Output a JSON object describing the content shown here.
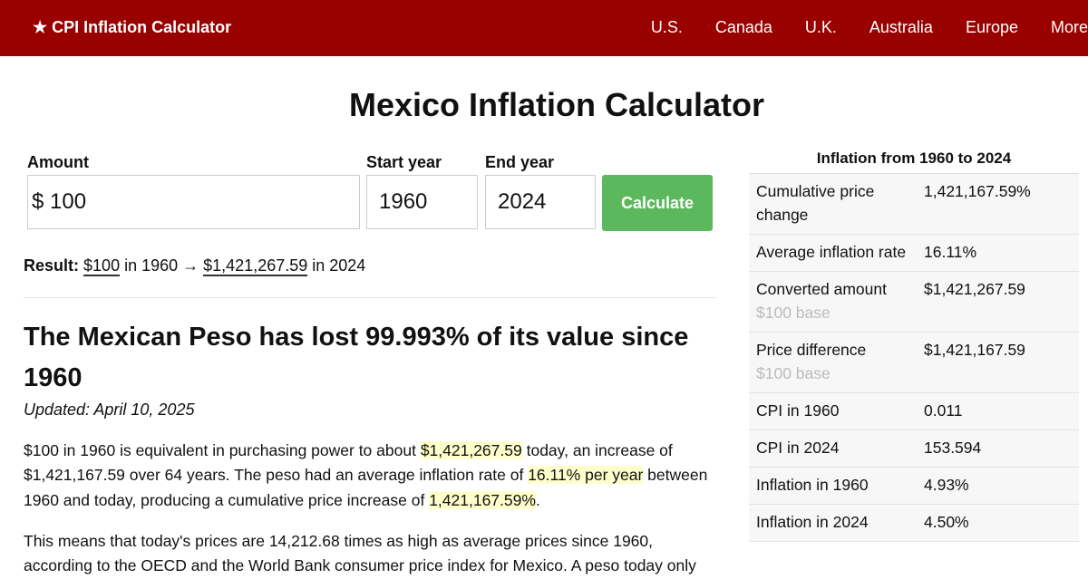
{
  "nav": {
    "brand": "★ CPI Inflation Calculator",
    "links": [
      "U.S.",
      "Canada",
      "U.K.",
      "Australia",
      "Europe",
      "More"
    ]
  },
  "title": "Mexico Inflation Calculator",
  "form": {
    "amount_label": "Amount",
    "currency": "$",
    "amount": "100",
    "start_label": "Start year",
    "start": "1960",
    "end_label": "End year",
    "end": "2024",
    "button": "Calculate"
  },
  "result": {
    "label": "Result:",
    "from": "$100",
    "mid": " in 1960 → ",
    "to": "$1,421,267.59",
    "tail": " in 2024"
  },
  "heading": "The Mexican Peso has lost 99.993% of its value since 1960",
  "updated": "Updated: April 10, 2025",
  "paragraphs": [
    [
      {
        "text": "$100 in 1960 is equivalent in purchasing power to about ",
        "highlight": false
      },
      {
        "text": "$1,421,267.59",
        "highlight": true
      },
      {
        "text": " today, an increase of $1,421,167.59 over 64 years. The peso had an average inflation rate of ",
        "highlight": false
      },
      {
        "text": "16.11% per year",
        "highlight": true
      },
      {
        "text": " between 1960 and today, producing a cumulative price increase of ",
        "highlight": false
      },
      {
        "text": "1,421,167.59%",
        "highlight": true
      },
      {
        "text": ".",
        "highlight": false
      }
    ],
    [
      {
        "text": "This means that today's prices are 14,212.68 times as high as average prices since 1960, according to the OECD and the World Bank consumer price index for Mexico. A peso today only",
        "highlight": false
      }
    ]
  ],
  "sidebar": {
    "title": "Inflation from 1960 to 2024",
    "rows": [
      {
        "label": "Cumulative price change",
        "value": "1,421,167.59%"
      },
      {
        "label": "Average inflation rate",
        "value": "16.11%"
      },
      {
        "label": "Converted amount",
        "note": "$100 base",
        "value": "$1,421,267.59"
      },
      {
        "label": "Price difference",
        "note": "$100 base",
        "value": "$1,421,167.59"
      },
      {
        "label": "CPI in 1960",
        "value": "0.011"
      },
      {
        "label": "CPI in 2024",
        "value": "153.594"
      },
      {
        "label": "Inflation in 1960",
        "value": "4.93%"
      },
      {
        "label": "Inflation in 2024",
        "value": "4.50%"
      }
    ]
  }
}
